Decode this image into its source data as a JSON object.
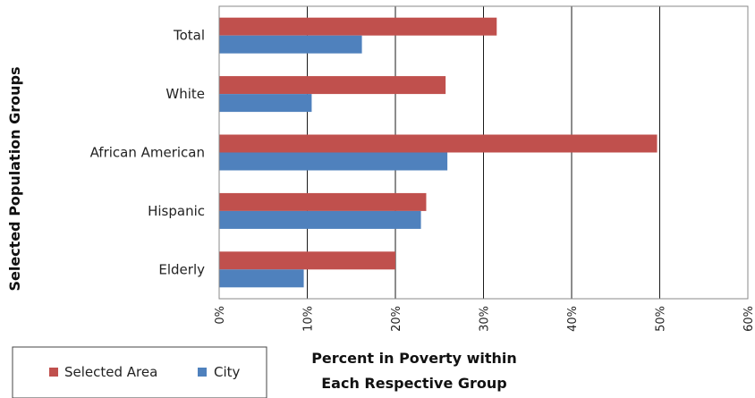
{
  "chart_data": {
    "type": "bar",
    "orientation": "horizontal",
    "categories": [
      "Total",
      "White",
      "African American",
      "Hispanic",
      "Elderly"
    ],
    "series": [
      {
        "name": "Selected Area",
        "color": "#c0504d",
        "values": [
          31.5,
          25.7,
          49.7,
          23.5,
          20.0
        ]
      },
      {
        "name": "City",
        "color": "#4f81bd",
        "values": [
          16.2,
          10.5,
          25.9,
          22.9,
          9.6
        ]
      }
    ],
    "xlabel_lines": [
      "Percent in Poverty within",
      "Each Respective Group"
    ],
    "ylabel": "Selected Population Groups",
    "xlim": [
      0,
      60
    ],
    "xticks": [
      "0%",
      "10%",
      "20%",
      "30%",
      "40%",
      "50%",
      "60%"
    ],
    "grid": true,
    "legend_position": "bottom-left"
  }
}
